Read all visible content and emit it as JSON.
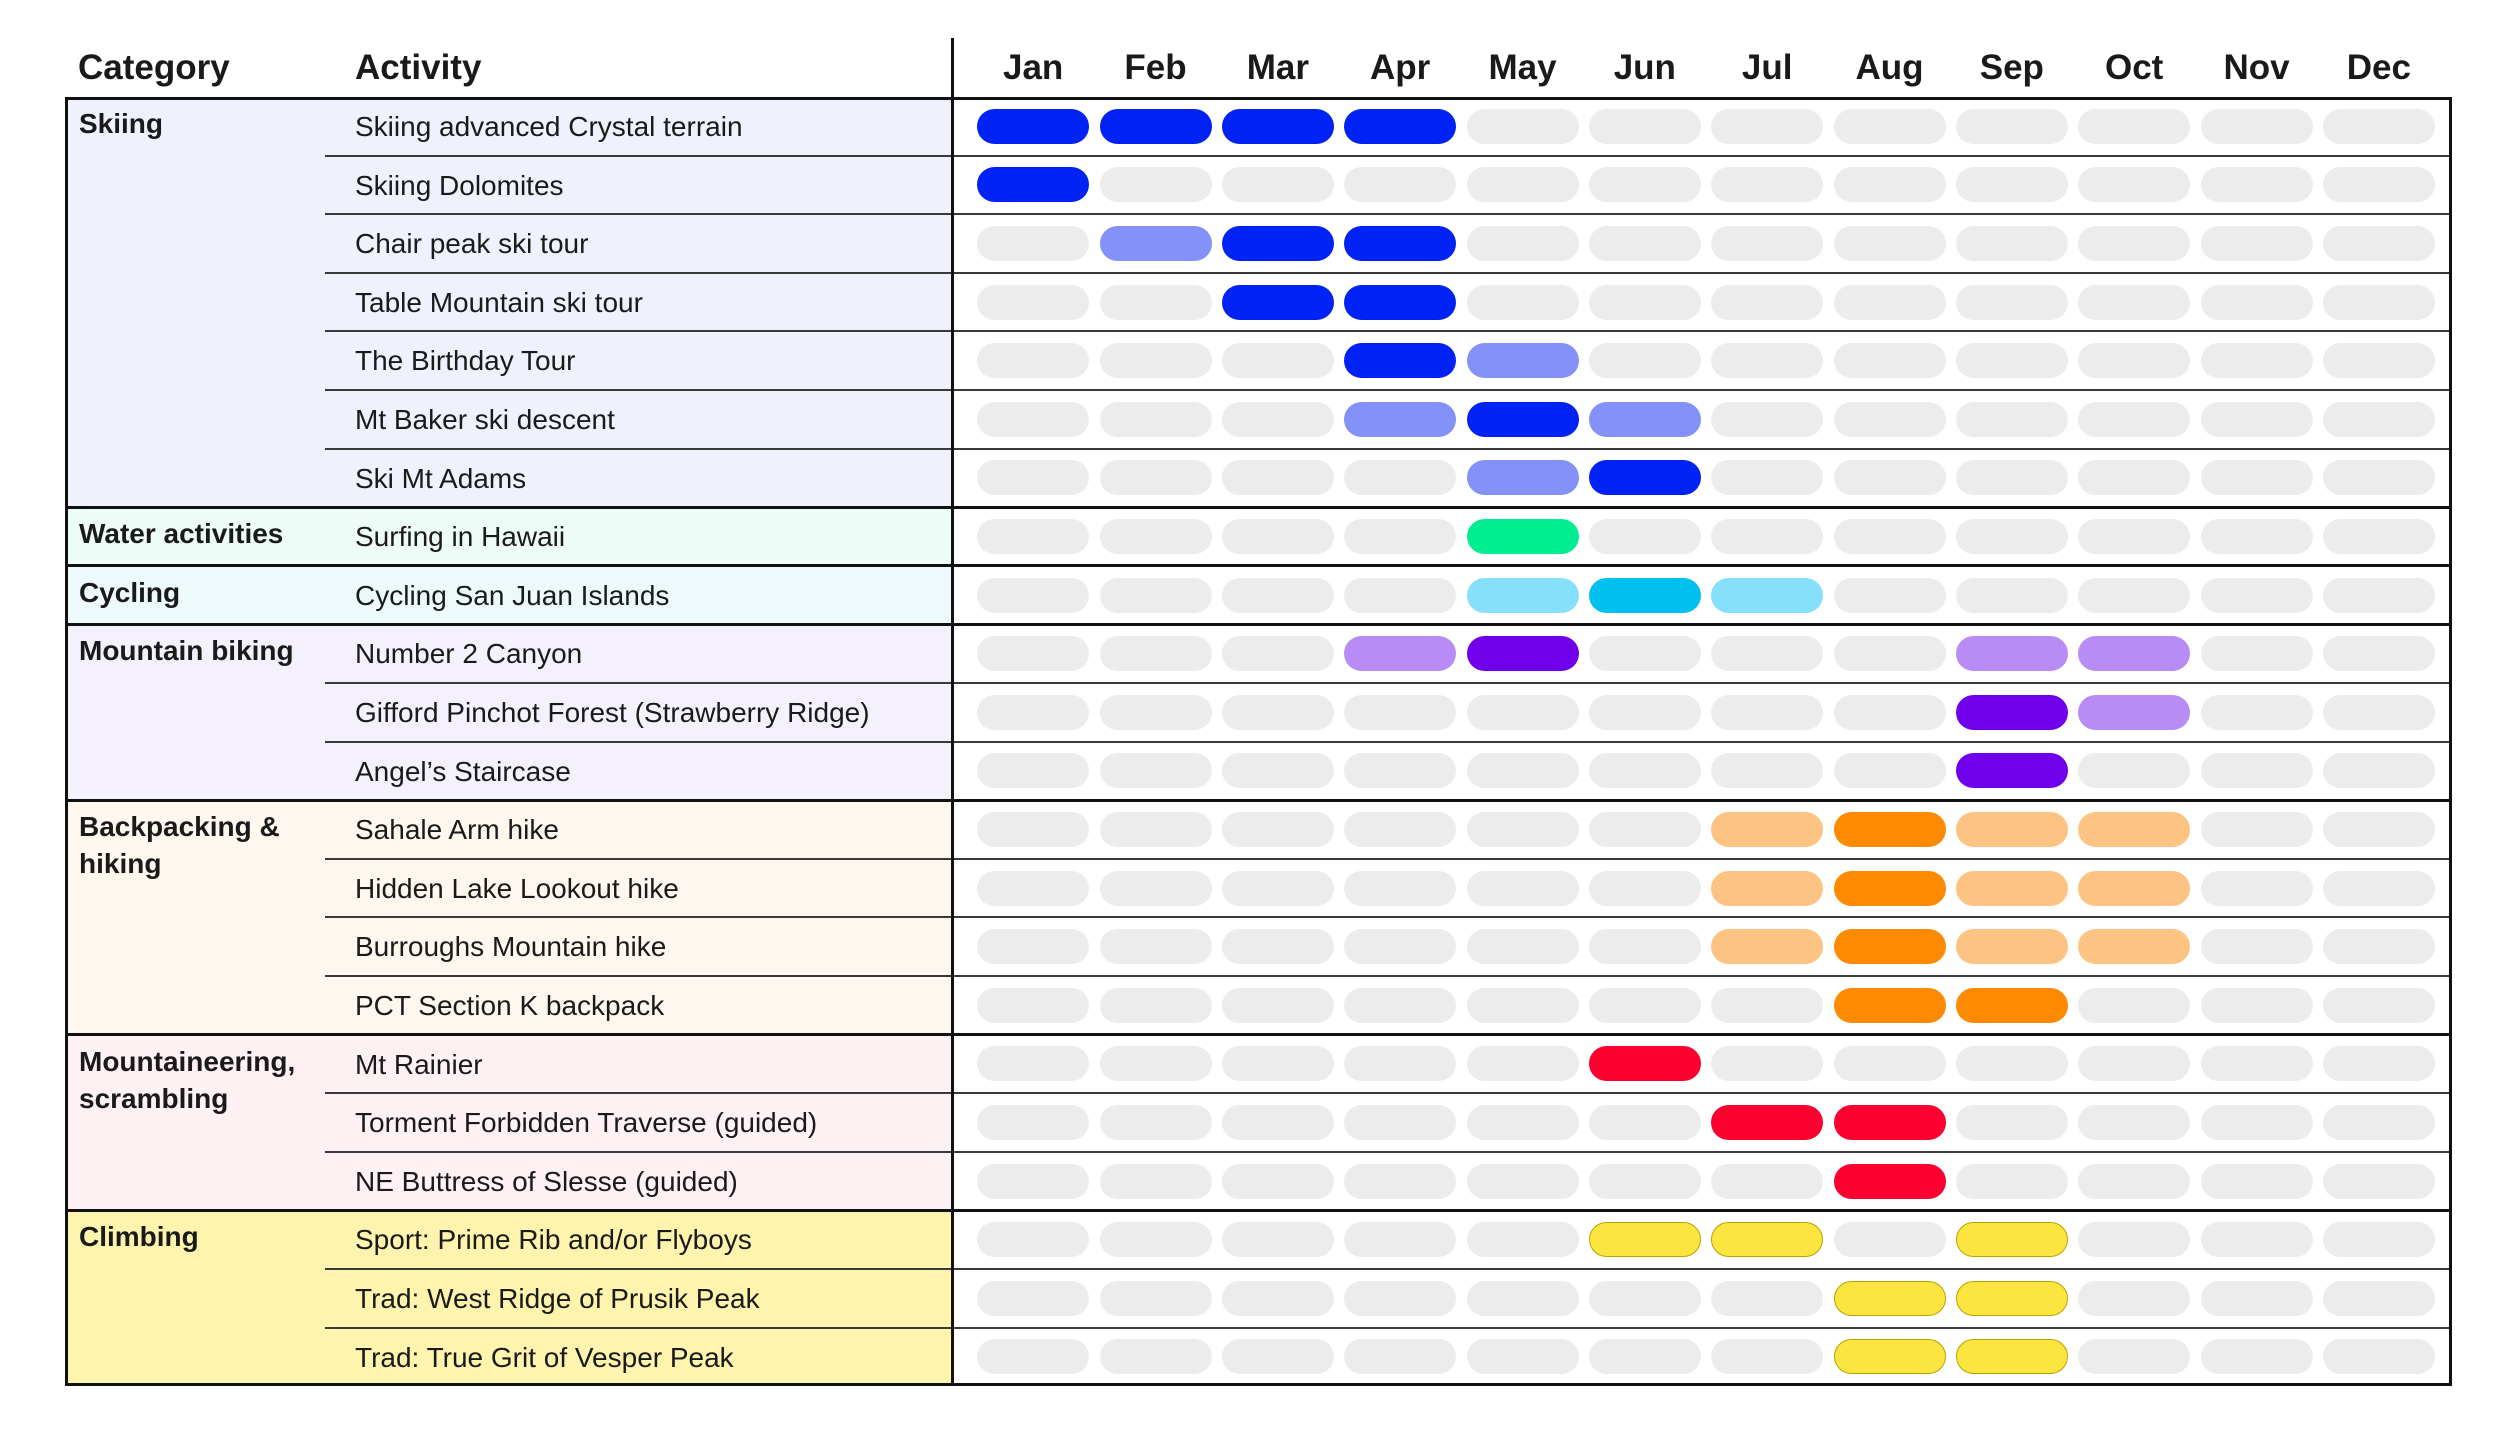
{
  "headers": {
    "category": "Category",
    "activity": "Activity"
  },
  "colors": {
    "inactive": "#ececec"
  },
  "chart_data": {
    "type": "table",
    "months": [
      "Jan",
      "Feb",
      "Mar",
      "Apr",
      "May",
      "Jun",
      "Jul",
      "Aug",
      "Sep",
      "Oct",
      "Nov",
      "Dec"
    ],
    "categories": [
      {
        "name": "Skiing",
        "bg": "#eff2fc",
        "dark": "#0022f5",
        "light": "#8391f8",
        "activities": [
          {
            "name": "Skiing advanced Crystal terrain",
            "months": [
              2,
              2,
              2,
              2,
              0,
              0,
              0,
              0,
              0,
              0,
              0,
              0
            ]
          },
          {
            "name": "Skiing Dolomites",
            "months": [
              2,
              0,
              0,
              0,
              0,
              0,
              0,
              0,
              0,
              0,
              0,
              0
            ]
          },
          {
            "name": "Chair peak ski tour",
            "months": [
              0,
              1,
              2,
              2,
              0,
              0,
              0,
              0,
              0,
              0,
              0,
              0
            ]
          },
          {
            "name": "Table Mountain ski tour",
            "months": [
              0,
              0,
              2,
              2,
              0,
              0,
              0,
              0,
              0,
              0,
              0,
              0
            ]
          },
          {
            "name": "The Birthday Tour",
            "months": [
              0,
              0,
              0,
              2,
              1,
              0,
              0,
              0,
              0,
              0,
              0,
              0
            ]
          },
          {
            "name": "Mt Baker ski descent",
            "months": [
              0,
              0,
              0,
              1,
              2,
              1,
              0,
              0,
              0,
              0,
              0,
              0
            ]
          },
          {
            "name": "Ski Mt Adams",
            "months": [
              0,
              0,
              0,
              0,
              1,
              2,
              0,
              0,
              0,
              0,
              0,
              0
            ]
          }
        ]
      },
      {
        "name": "Water activities",
        "bg": "#eefcf7",
        "dark": "#00ee90",
        "light": "#80f6c8",
        "activities": [
          {
            "name": "Surfing in Hawaii",
            "months": [
              0,
              0,
              0,
              0,
              2,
              0,
              0,
              0,
              0,
              0,
              0,
              0
            ]
          }
        ]
      },
      {
        "name": "Cycling",
        "bg": "#eef9fc",
        "dark": "#00c0f0",
        "light": "#86e0fc",
        "activities": [
          {
            "name": "Cycling San Juan Islands",
            "months": [
              0,
              0,
              0,
              0,
              1,
              2,
              1,
              0,
              0,
              0,
              0,
              0
            ]
          }
        ]
      },
      {
        "name": "Mountain biking",
        "bg": "#f5f1fc",
        "dark": "#7000ec",
        "light": "#b98cf5",
        "activities": [
          {
            "name": "Number 2 Canyon",
            "months": [
              0,
              0,
              0,
              1,
              2,
              0,
              0,
              0,
              1,
              1,
              0,
              0
            ]
          },
          {
            "name": "Gifford Pinchot Forest (Strawberry Ridge)",
            "months": [
              0,
              0,
              0,
              0,
              0,
              0,
              0,
              0,
              2,
              1,
              0,
              0
            ]
          },
          {
            "name": "Angel’s Staircase",
            "months": [
              0,
              0,
              0,
              0,
              0,
              0,
              0,
              0,
              2,
              0,
              0,
              0
            ]
          }
        ]
      },
      {
        "name": "Backpacking & hiking",
        "bg": "#fdf7f0",
        "dark": "#fd8a00",
        "light": "#fdc383",
        "activities": [
          {
            "name": "Sahale Arm hike",
            "months": [
              0,
              0,
              0,
              0,
              0,
              0,
              1,
              2,
              1,
              1,
              0,
              0
            ]
          },
          {
            "name": "Hidden Lake Lookout hike",
            "months": [
              0,
              0,
              0,
              0,
              0,
              0,
              1,
              2,
              1,
              1,
              0,
              0
            ]
          },
          {
            "name": "Burroughs Mountain hike",
            "months": [
              0,
              0,
              0,
              0,
              0,
              0,
              1,
              2,
              1,
              1,
              0,
              0
            ]
          },
          {
            "name": "PCT Section K backpack",
            "months": [
              0,
              0,
              0,
              0,
              0,
              0,
              0,
              2,
              2,
              0,
              0,
              0
            ]
          }
        ]
      },
      {
        "name": "Mountaineering, scrambling",
        "bg": "#fdf1f3",
        "dark": "#fc0030",
        "light": "#fc8598",
        "activities": [
          {
            "name": "Mt Rainier",
            "months": [
              0,
              0,
              0,
              0,
              0,
              2,
              0,
              0,
              0,
              0,
              0,
              0
            ]
          },
          {
            "name": "Torment Forbidden Traverse (guided)",
            "months": [
              0,
              0,
              0,
              0,
              0,
              0,
              2,
              2,
              0,
              0,
              0,
              0
            ]
          },
          {
            "name": "NE Buttress of Slesse (guided)",
            "months": [
              0,
              0,
              0,
              0,
              0,
              0,
              0,
              2,
              0,
              0,
              0,
              0
            ]
          }
        ]
      },
      {
        "name": "Climbing",
        "bg": "#fef4ae",
        "dark": "#fde540",
        "light": "#fde540",
        "activities": [
          {
            "name": "Sport: Prime Rib and/or Flyboys",
            "months": [
              0,
              0,
              0,
              0,
              0,
              2,
              2,
              0,
              2,
              0,
              0,
              0
            ]
          },
          {
            "name": "Trad: West Ridge of Prusik Peak",
            "months": [
              0,
              0,
              0,
              0,
              0,
              0,
              0,
              2,
              2,
              0,
              0,
              0
            ]
          },
          {
            "name": "Trad: True Grit of Vesper Peak",
            "months": [
              0,
              0,
              0,
              0,
              0,
              0,
              0,
              2,
              2,
              0,
              0,
              0
            ]
          }
        ]
      }
    ]
  }
}
